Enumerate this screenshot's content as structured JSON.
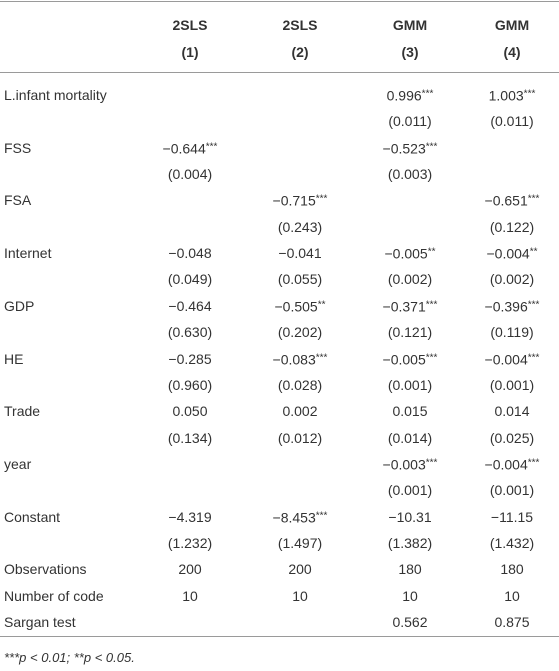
{
  "table": {
    "columns": [
      {
        "model": "2SLS",
        "number": "(1)"
      },
      {
        "model": "2SLS",
        "number": "(2)"
      },
      {
        "model": "GMM",
        "number": "(3)"
      },
      {
        "model": "GMM",
        "number": "(4)"
      }
    ],
    "variables": [
      {
        "label": "L.infant mortality",
        "coef": [
          null,
          null,
          {
            "text": "0.996",
            "stars": "***"
          },
          {
            "text": "1.003",
            "stars": "***"
          }
        ],
        "se": [
          null,
          null,
          "(0.011)",
          "(0.011)"
        ]
      },
      {
        "label": "FSS",
        "coef": [
          {
            "text": "−0.644",
            "stars": "***"
          },
          null,
          {
            "text": "−0.523",
            "stars": "***"
          },
          null
        ],
        "se": [
          "(0.004)",
          null,
          "(0.003)",
          null
        ]
      },
      {
        "label": "FSA",
        "coef": [
          null,
          {
            "text": "−0.715",
            "stars": "***"
          },
          null,
          {
            "text": "−0.651",
            "stars": "***"
          }
        ],
        "se": [
          null,
          "(0.243)",
          null,
          "(0.122)"
        ]
      },
      {
        "label": "Internet",
        "coef": [
          {
            "text": "−0.048"
          },
          {
            "text": "−0.041"
          },
          {
            "text": "−0.005",
            "stars": "**"
          },
          {
            "text": "−0.004",
            "stars": "**"
          }
        ],
        "se": [
          "(0.049)",
          "(0.055)",
          "(0.002)",
          "(0.002)"
        ]
      },
      {
        "label": "GDP",
        "coef": [
          {
            "text": "−0.464"
          },
          {
            "text": "−0.505",
            "stars": "**"
          },
          {
            "text": "−0.371",
            "stars": "***"
          },
          {
            "text": "−0.396",
            "stars": "***"
          }
        ],
        "se": [
          "(0.630)",
          "(0.202)",
          "(0.121)",
          "(0.119)"
        ]
      },
      {
        "label": "HE",
        "coef": [
          {
            "text": "−0.285"
          },
          {
            "text": "−0.083",
            "stars": "***"
          },
          {
            "text": "−0.005",
            "stars": "***"
          },
          {
            "text": "−0.004",
            "stars": "***"
          }
        ],
        "se": [
          "(0.960)",
          "(0.028)",
          "(0.001)",
          "(0.001)"
        ]
      },
      {
        "label": "Trade",
        "coef": [
          {
            "text": "0.050"
          },
          {
            "text": "0.002"
          },
          {
            "text": "0.015"
          },
          {
            "text": "0.014"
          }
        ],
        "se": [
          "(0.134)",
          "(0.012)",
          "(0.014)",
          "(0.025)"
        ]
      },
      {
        "label": "year",
        "coef": [
          null,
          null,
          {
            "text": "−0.003",
            "stars": "***"
          },
          {
            "text": "−0.004",
            "stars": "***"
          }
        ],
        "se": [
          null,
          null,
          "(0.001)",
          "(0.001)"
        ]
      },
      {
        "label": "Constant",
        "coef": [
          {
            "text": "−4.319"
          },
          {
            "text": "−8.453",
            "stars": "***"
          },
          {
            "text": "−10.31"
          },
          {
            "text": "−11.15"
          }
        ],
        "se": [
          "(1.232)",
          "(1.497)",
          "(1.382)",
          "(1.432)"
        ]
      }
    ],
    "stats": [
      {
        "label": "Observations",
        "cells": [
          "200",
          "200",
          "180",
          "180"
        ]
      },
      {
        "label": "Number of code",
        "cells": [
          "10",
          "10",
          "10",
          "10"
        ]
      },
      {
        "label": "Sargan test",
        "cells": [
          null,
          null,
          "0.562",
          "0.875"
        ]
      }
    ],
    "footnote": "***p < 0.01; **p < 0.05."
  }
}
